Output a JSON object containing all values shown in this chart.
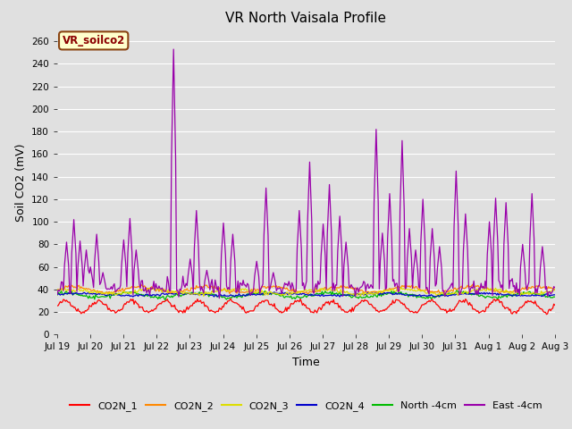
{
  "title": "VR North Vaisala Profile",
  "xlabel": "Time",
  "ylabel": "Soil CO2 (mV)",
  "ylim": [
    0,
    270
  ],
  "yticks": [
    0,
    20,
    40,
    60,
    80,
    100,
    120,
    140,
    160,
    180,
    200,
    220,
    240,
    260
  ],
  "bg_color": "#e0e0e0",
  "annotation_text": "VR_soilco2",
  "annotation_bg": "#ffffcc",
  "annotation_border": "#8B4513",
  "annotation_text_color": "#8B0000",
  "series_colors": {
    "CO2N_1": "#ff0000",
    "CO2N_2": "#ff8800",
    "CO2N_3": "#dddd00",
    "CO2N_4": "#0000cc",
    "North -4cm": "#00bb00",
    "East -4cm": "#9900aa"
  },
  "x_tick_labels": [
    "Jul 19",
    "Jul 20",
    "Jul 21",
    "Jul 22",
    "Jul 23",
    "Jul 24",
    "Jul 25",
    "Jul 26",
    "Jul 27",
    "Jul 28",
    "Jul 29",
    "Jul 30",
    "Jul 31",
    "Aug 1",
    "Aug 2",
    "Aug 3"
  ],
  "grid_color": "#ffffff",
  "title_fontsize": 11,
  "axis_label_fontsize": 9,
  "tick_fontsize": 7.5,
  "legend_fontsize": 8
}
